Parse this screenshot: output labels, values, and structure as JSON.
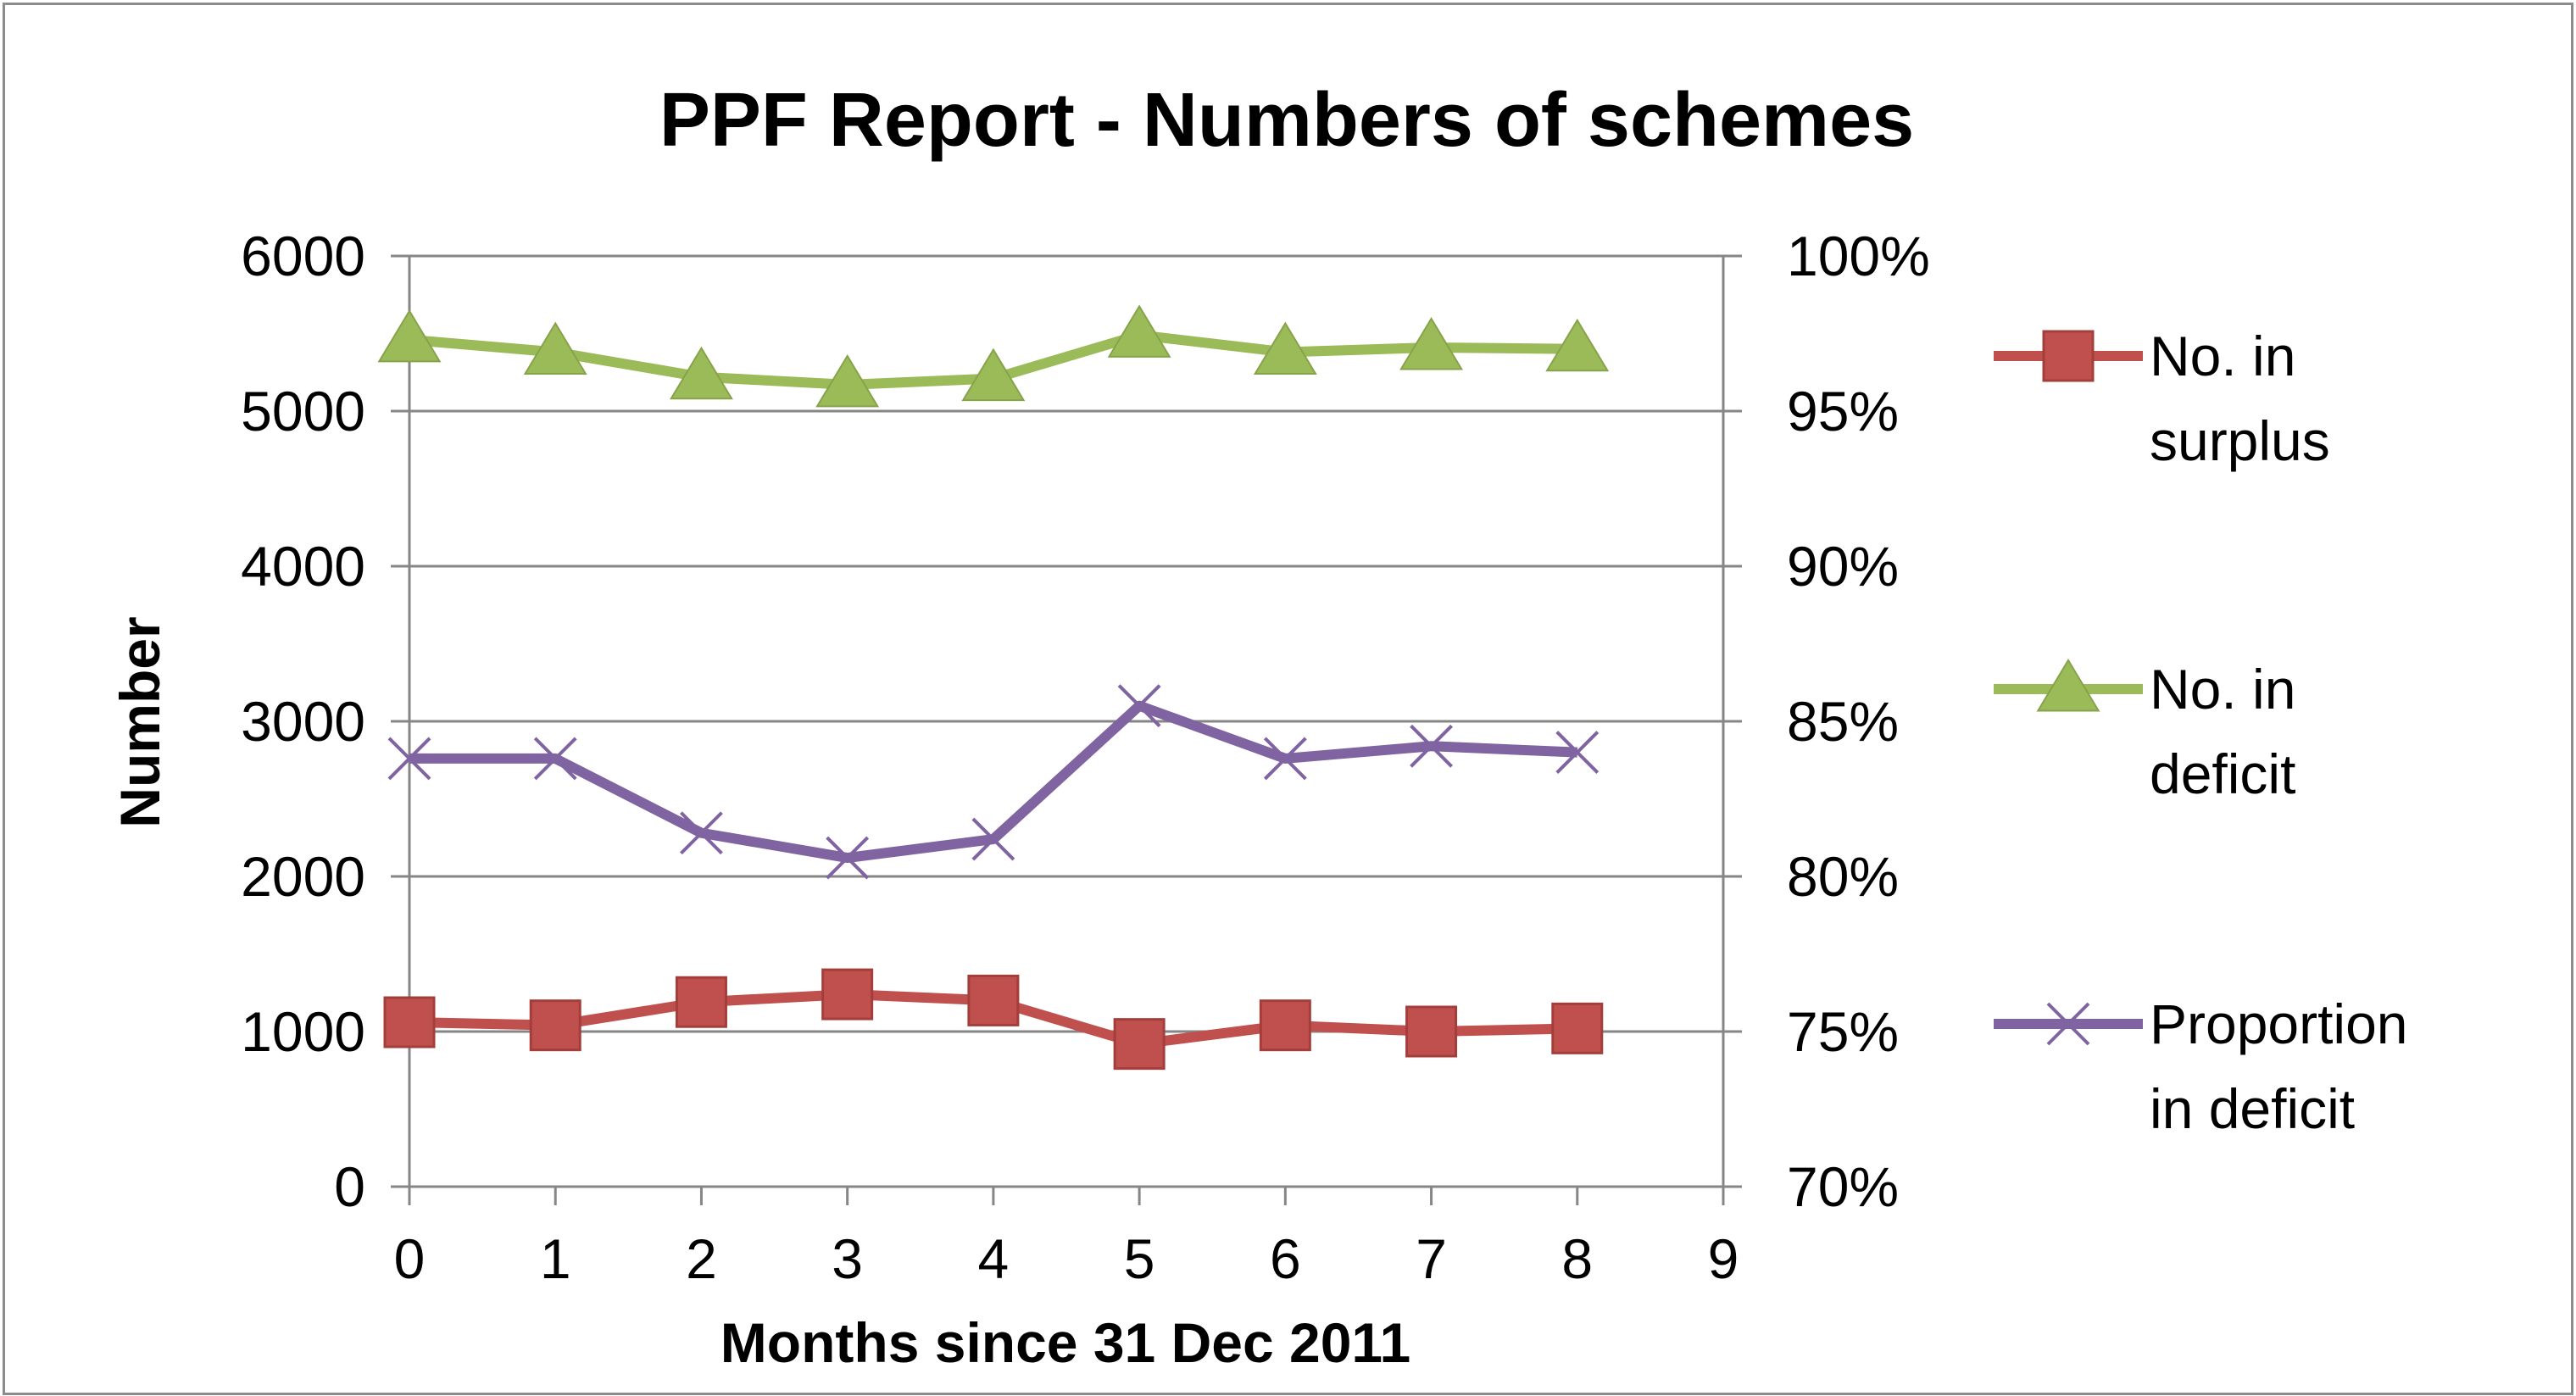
{
  "chart_data": {
    "type": "line",
    "title": "PPF Report - Numbers of schemes",
    "xlabel": "Months since 31 Dec 2011",
    "ylabel": "Number",
    "x": [
      0,
      1,
      2,
      3,
      4,
      5,
      6,
      7,
      8
    ],
    "xlim": [
      0,
      9
    ],
    "x_ticks": [
      "0",
      "1",
      "2",
      "3",
      "4",
      "5",
      "6",
      "7",
      "8",
      "9"
    ],
    "ylim": [
      0,
      6000
    ],
    "y_ticks": [
      "0",
      "1000",
      "2000",
      "3000",
      "4000",
      "5000",
      "6000"
    ],
    "y2lim": [
      0.7,
      1.0
    ],
    "y2_ticks": [
      "70%",
      "75%",
      "80%",
      "85%",
      "90%",
      "95%",
      "100%"
    ],
    "grid": "horizontal",
    "legend_position": "right",
    "series": [
      {
        "name": "No. in surplus",
        "legend_lines": [
          "No. in",
          "surplus"
        ],
        "axis": "left",
        "marker": "square",
        "color": "#c0504d",
        "values": [
          1060,
          1040,
          1190,
          1240,
          1200,
          920,
          1040,
          1000,
          1020
        ]
      },
      {
        "name": "No. in deficit",
        "legend_lines": [
          "No. in",
          "deficit"
        ],
        "axis": "left",
        "marker": "triangle",
        "color": "#9bbb59",
        "values": [
          5460,
          5380,
          5220,
          5170,
          5210,
          5490,
          5380,
          5410,
          5400
        ]
      },
      {
        "name": "Proportion in deficit",
        "legend_lines": [
          "Proportion",
          "in deficit"
        ],
        "axis": "right",
        "marker": "x",
        "color": "#8064a2",
        "values": [
          0.838,
          0.838,
          0.814,
          0.806,
          0.812,
          0.855,
          0.838,
          0.842,
          0.84
        ]
      }
    ]
  }
}
